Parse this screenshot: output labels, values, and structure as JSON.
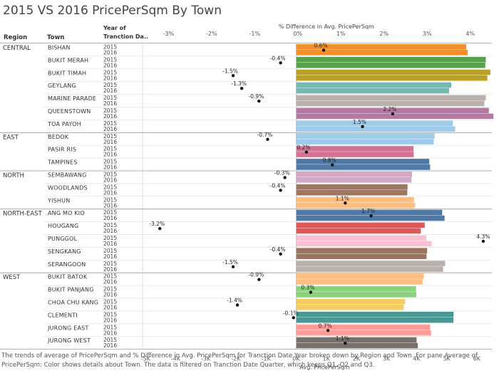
{
  "title": "2015 VS 2016 PricePerSqm By Town",
  "caption": "The trends of average of PricePerSqm and % Difference in Avg. PricePerSqm for Tranction Date Year broken down by Region and Town.  For pane Average of PricePerSqm:  Color shows details about Town. The data is filtered on Tranction Date Quarter, which keeps Q1, Q2 and Q3.",
  "headers": {
    "region": "Region",
    "town": "Town",
    "year_line1": "Year of",
    "year_line2": "Tranction Da.."
  },
  "chart_data": {
    "type": "bar",
    "title": "2015 VS 2016 PricePerSqm By Town",
    "top_axis": {
      "label": "% Difference in Avg. PricePerSqm",
      "range": [
        -3.6,
        4.5
      ],
      "ticks": [
        -3,
        -2,
        -1,
        0,
        1,
        2,
        3,
        4
      ],
      "tick_labels": [
        "-3%",
        "-2%",
        "-1%",
        "0%",
        "1%",
        "2%",
        "3%",
        "4%"
      ]
    },
    "bottom_axis": {
      "label": "Avg. PricePerSqm",
      "range": [
        -5100,
        6500
      ],
      "ticks": [
        -5000,
        -4000,
        -3000,
        -2000,
        -1000,
        0,
        1000,
        2000,
        3000,
        4000,
        5000,
        6000
      ],
      "tick_labels": [
        "-5K",
        "-4K",
        "-3K",
        "-2K",
        "-1K",
        "0K",
        "1K",
        "2K",
        "3K",
        "4K",
        "5K",
        "6K"
      ]
    },
    "years": [
      "2015",
      "2016"
    ],
    "regions": [
      {
        "name": "CENTRAL",
        "towns": [
          {
            "name": "BISHAN",
            "color": "#F28E2B",
            "values": [
              5650,
              5700
            ],
            "pct": 0.6,
            "pct_label": "0.6%"
          },
          {
            "name": "BUKIT MERAH",
            "color": "#59A14F",
            "values": [
              6300,
              6280
            ],
            "pct": -0.4,
            "pct_label": "-0.4%"
          },
          {
            "name": "BUKIT TIMAH",
            "color": "#B8A02B",
            "values": [
              6450,
              6350
            ],
            "pct": -1.5,
            "pct_label": "-1.5%"
          },
          {
            "name": "GEYLANG",
            "color": "#76B7B2",
            "values": [
              5150,
              5080
            ],
            "pct": -1.3,
            "pct_label": "-1.3%"
          },
          {
            "name": "MARINE PARADE",
            "color": "#BAB0AC",
            "values": [
              6300,
              6250
            ],
            "pct": -0.9,
            "pct_label": "-0.9%"
          },
          {
            "name": "QUEENSTOWN",
            "color": "#B07AA1",
            "values": [
              6400,
              6550
            ],
            "pct": 2.2,
            "pct_label": "2.2%"
          },
          {
            "name": "TOA PAYOH",
            "color": "#A0CBE8",
            "values": [
              5200,
              5280
            ],
            "pct": 1.5,
            "pct_label": "1.5%"
          }
        ]
      },
      {
        "name": "EAST",
        "towns": [
          {
            "name": "BEDOK",
            "color": "#A0CBE8",
            "values": [
              4600,
              4570
            ],
            "pct": -0.7,
            "pct_label": "-0.7%"
          },
          {
            "name": "PASIR RIS",
            "color": "#D37295",
            "values": [
              3900,
              3905
            ],
            "pct": 0.2,
            "pct_label": "0.2%"
          },
          {
            "name": "TAMPINES",
            "color": "#4E79A7",
            "values": [
              4420,
              4450
            ],
            "pct": 0.8,
            "pct_label": "0.8%"
          }
        ]
      },
      {
        "name": "NORTH",
        "towns": [
          {
            "name": "SEMBAWANG",
            "color": "#D4A6C8",
            "values": [
              3850,
              3830
            ],
            "pct": -0.3,
            "pct_label": "-0.3%"
          },
          {
            "name": "WOODLANDS",
            "color": "#9D7660",
            "values": [
              3700,
              3690
            ],
            "pct": -0.4,
            "pct_label": "-0.4%"
          },
          {
            "name": "YISHUN",
            "color": "#FFBE7D",
            "values": [
              3910,
              3950
            ],
            "pct": 1.1,
            "pct_label": "1.1%"
          }
        ]
      },
      {
        "name": "NORTH-EAST",
        "towns": [
          {
            "name": "ANG MO KIO",
            "color": "#4E79A7",
            "values": [
              4850,
              4930
            ],
            "pct": 1.7,
            "pct_label": "1.7%"
          },
          {
            "name": "HOUGANG",
            "color": "#E15759",
            "values": [
              4270,
              4140
            ],
            "pct": -3.2,
            "pct_label": "-3.2%"
          },
          {
            "name": "PUNGGOL",
            "color": "#FABFD2",
            "values": [
              4320,
              4500
            ],
            "pct": 4.3,
            "pct_label": "4.3%"
          },
          {
            "name": "SENGKANG",
            "color": "#9C755F",
            "values": [
              4350,
              4330
            ],
            "pct": -0.4,
            "pct_label": "-0.4%"
          },
          {
            "name": "SERANGOON",
            "color": "#BAB0AC",
            "values": [
              4950,
              4880
            ],
            "pct": -1.5,
            "pct_label": "-1.5%"
          }
        ]
      },
      {
        "name": "WEST",
        "towns": [
          {
            "name": "BUKIT BATOK",
            "color": "#FFBE7D",
            "values": [
              4240,
              4200
            ],
            "pct": -0.9,
            "pct_label": "-0.9%"
          },
          {
            "name": "BUKIT PANJANG",
            "color": "#8CD17D",
            "values": [
              3980,
              3990
            ],
            "pct": 0.3,
            "pct_label": "0.3%"
          },
          {
            "name": "CHOA CHU KANG",
            "color": "#F1CE63",
            "values": [
              3620,
              3570
            ],
            "pct": -1.4,
            "pct_label": "-1.4%"
          },
          {
            "name": "CLEMENTI",
            "color": "#499894",
            "values": [
              5230,
              5225
            ],
            "pct": -0.1,
            "pct_label": "-0.1%"
          },
          {
            "name": "JURONG EAST",
            "color": "#FF9D9A",
            "values": [
              4450,
              4480
            ],
            "pct": 0.7,
            "pct_label": "0.7%"
          },
          {
            "name": "JURONG WEST",
            "color": "#79706E",
            "values": [
              4000,
              4040
            ],
            "pct": 1.1,
            "pct_label": "1.1%"
          }
        ]
      }
    ]
  }
}
